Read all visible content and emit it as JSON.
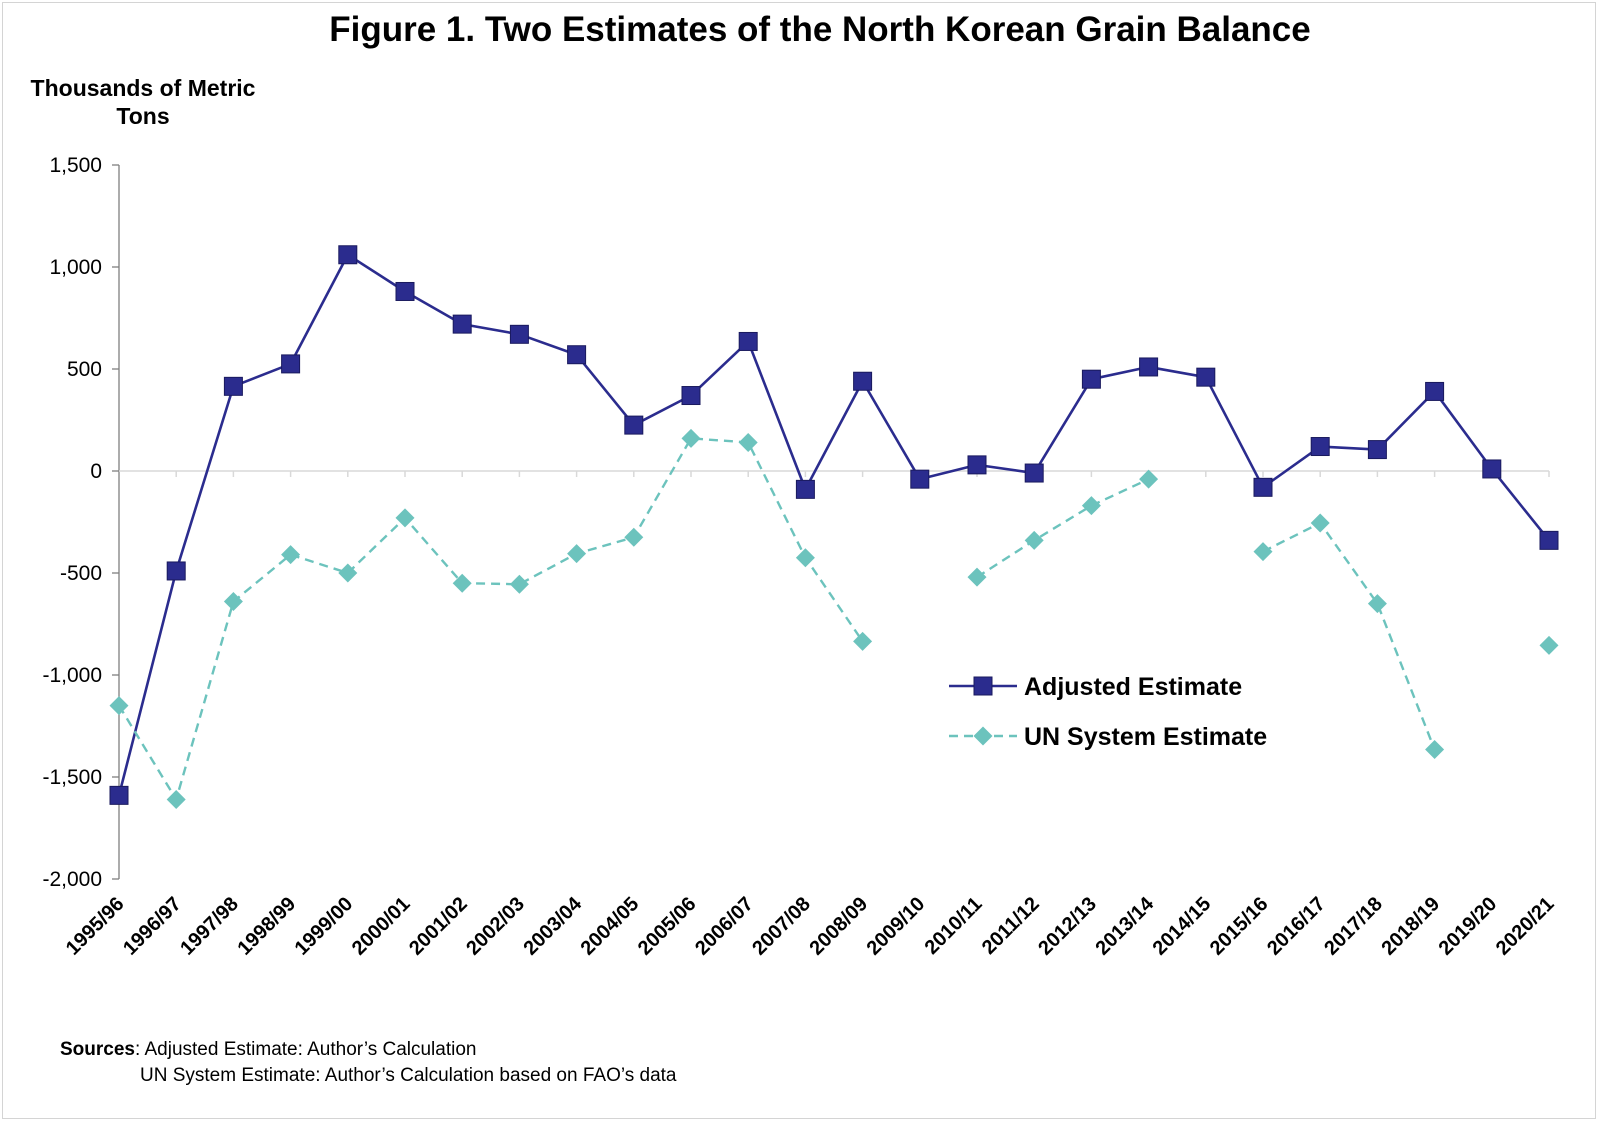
{
  "colors": {
    "adjusted": "#2b2c8e",
    "un": "#6cc3bd",
    "axis": "#7f7f7f",
    "zero_line": "#d9d9d9"
  },
  "chart_data": {
    "type": "line",
    "title": "Figure 1. Two Estimates of the North Korean Grain Balance",
    "ylabel": "Thousands of Metric Tons",
    "xlabel": "",
    "ylim": [
      -2000,
      1500
    ],
    "yticks": [
      1500,
      1000,
      500,
      0,
      -500,
      -1000,
      -1500,
      -2000
    ],
    "ytick_labels": [
      "1,500",
      "1,000",
      "500",
      "0",
      "-500",
      "-1,000",
      "-1,500",
      "-2,000"
    ],
    "grid": false,
    "legend_position": "center-right",
    "categories": [
      "1995/96",
      "1996/97",
      "1997/98",
      "1998/99",
      "1999/00",
      "2000/01",
      "2001/02",
      "2002/03",
      "2003/04",
      "2004/05",
      "2005/06",
      "2006/07",
      "2007/08",
      "2008/09",
      "2009/10",
      "2010/11",
      "2011/12",
      "2012/13",
      "2013/14",
      "2014/15",
      "2015/16",
      "2016/17",
      "2017/18",
      "2018/19",
      "2019/20",
      "2020/21"
    ],
    "series": [
      {
        "name": "Adjusted Estimate",
        "marker": "square",
        "line": "solid",
        "values": [
          -1590,
          -490,
          415,
          525,
          1060,
          880,
          720,
          670,
          570,
          225,
          370,
          635,
          -90,
          440,
          -40,
          30,
          -10,
          450,
          510,
          460,
          -80,
          120,
          105,
          390,
          10,
          -340
        ]
      },
      {
        "name": "UN System Estimate",
        "marker": "diamond",
        "line": "dashed",
        "values": [
          -1150,
          -1610,
          -640,
          -410,
          -500,
          -230,
          -550,
          -555,
          -405,
          -325,
          160,
          140,
          -425,
          -835,
          null,
          -520,
          -340,
          -170,
          -40,
          null,
          -395,
          -255,
          -650,
          -1365,
          null,
          -855
        ]
      }
    ]
  },
  "sources": {
    "label": "Sources",
    "line1": ": Adjusted Estimate: Author’s Calculation",
    "line2": "UN System Estimate: Author’s Calculation based on FAO’s data"
  }
}
